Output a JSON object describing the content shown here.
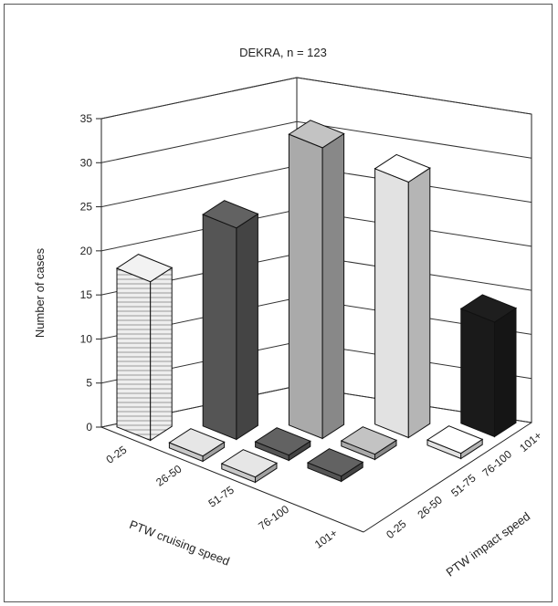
{
  "chart_data": {
    "type": "bar",
    "subtype": "3d",
    "title": "DEKRA, n = 123",
    "ylabel": "Number of cases",
    "ylim": [
      0,
      35
    ],
    "yticks": [
      0,
      5,
      10,
      15,
      20,
      25,
      30,
      35
    ],
    "x_axis": {
      "label": "PTW cruising speed",
      "categories": [
        "0-25",
        "26-50",
        "51-75",
        "76-100",
        "101+"
      ]
    },
    "z_axis": {
      "label": "PTW impact speed",
      "categories": [
        "0-25",
        "26-50",
        "51-75",
        "76-100",
        "101+"
      ]
    },
    "grid": true,
    "bars": [
      {
        "cruising": "0-25",
        "impact": "0-25",
        "value": 18,
        "color": "#dcdcdc",
        "pattern": "stripes"
      },
      {
        "cruising": "26-50",
        "impact": "0-25",
        "value": 0,
        "color": "#c8c8c8"
      },
      {
        "cruising": "26-50",
        "impact": "26-50",
        "value": 24,
        "color": "#555555"
      },
      {
        "cruising": "51-75",
        "impact": "0-25",
        "value": 0,
        "color": "#c8c8c8"
      },
      {
        "cruising": "51-75",
        "impact": "26-50",
        "value": 0,
        "color": "#555555"
      },
      {
        "cruising": "51-75",
        "impact": "51-75",
        "value": 33,
        "color": "#aaaaaa"
      },
      {
        "cruising": "76-100",
        "impact": "26-50",
        "value": 0,
        "color": "#555555"
      },
      {
        "cruising": "76-100",
        "impact": "51-75",
        "value": 0,
        "color": "#aaaaaa"
      },
      {
        "cruising": "76-100",
        "impact": "76-100",
        "value": 29,
        "color": "#e2e2e2"
      },
      {
        "cruising": "101+",
        "impact": "76-100",
        "value": 0,
        "color": "#e2e2e2"
      },
      {
        "cruising": "101+",
        "impact": "101+",
        "value": 13,
        "color": "#1a1a1a"
      }
    ]
  }
}
